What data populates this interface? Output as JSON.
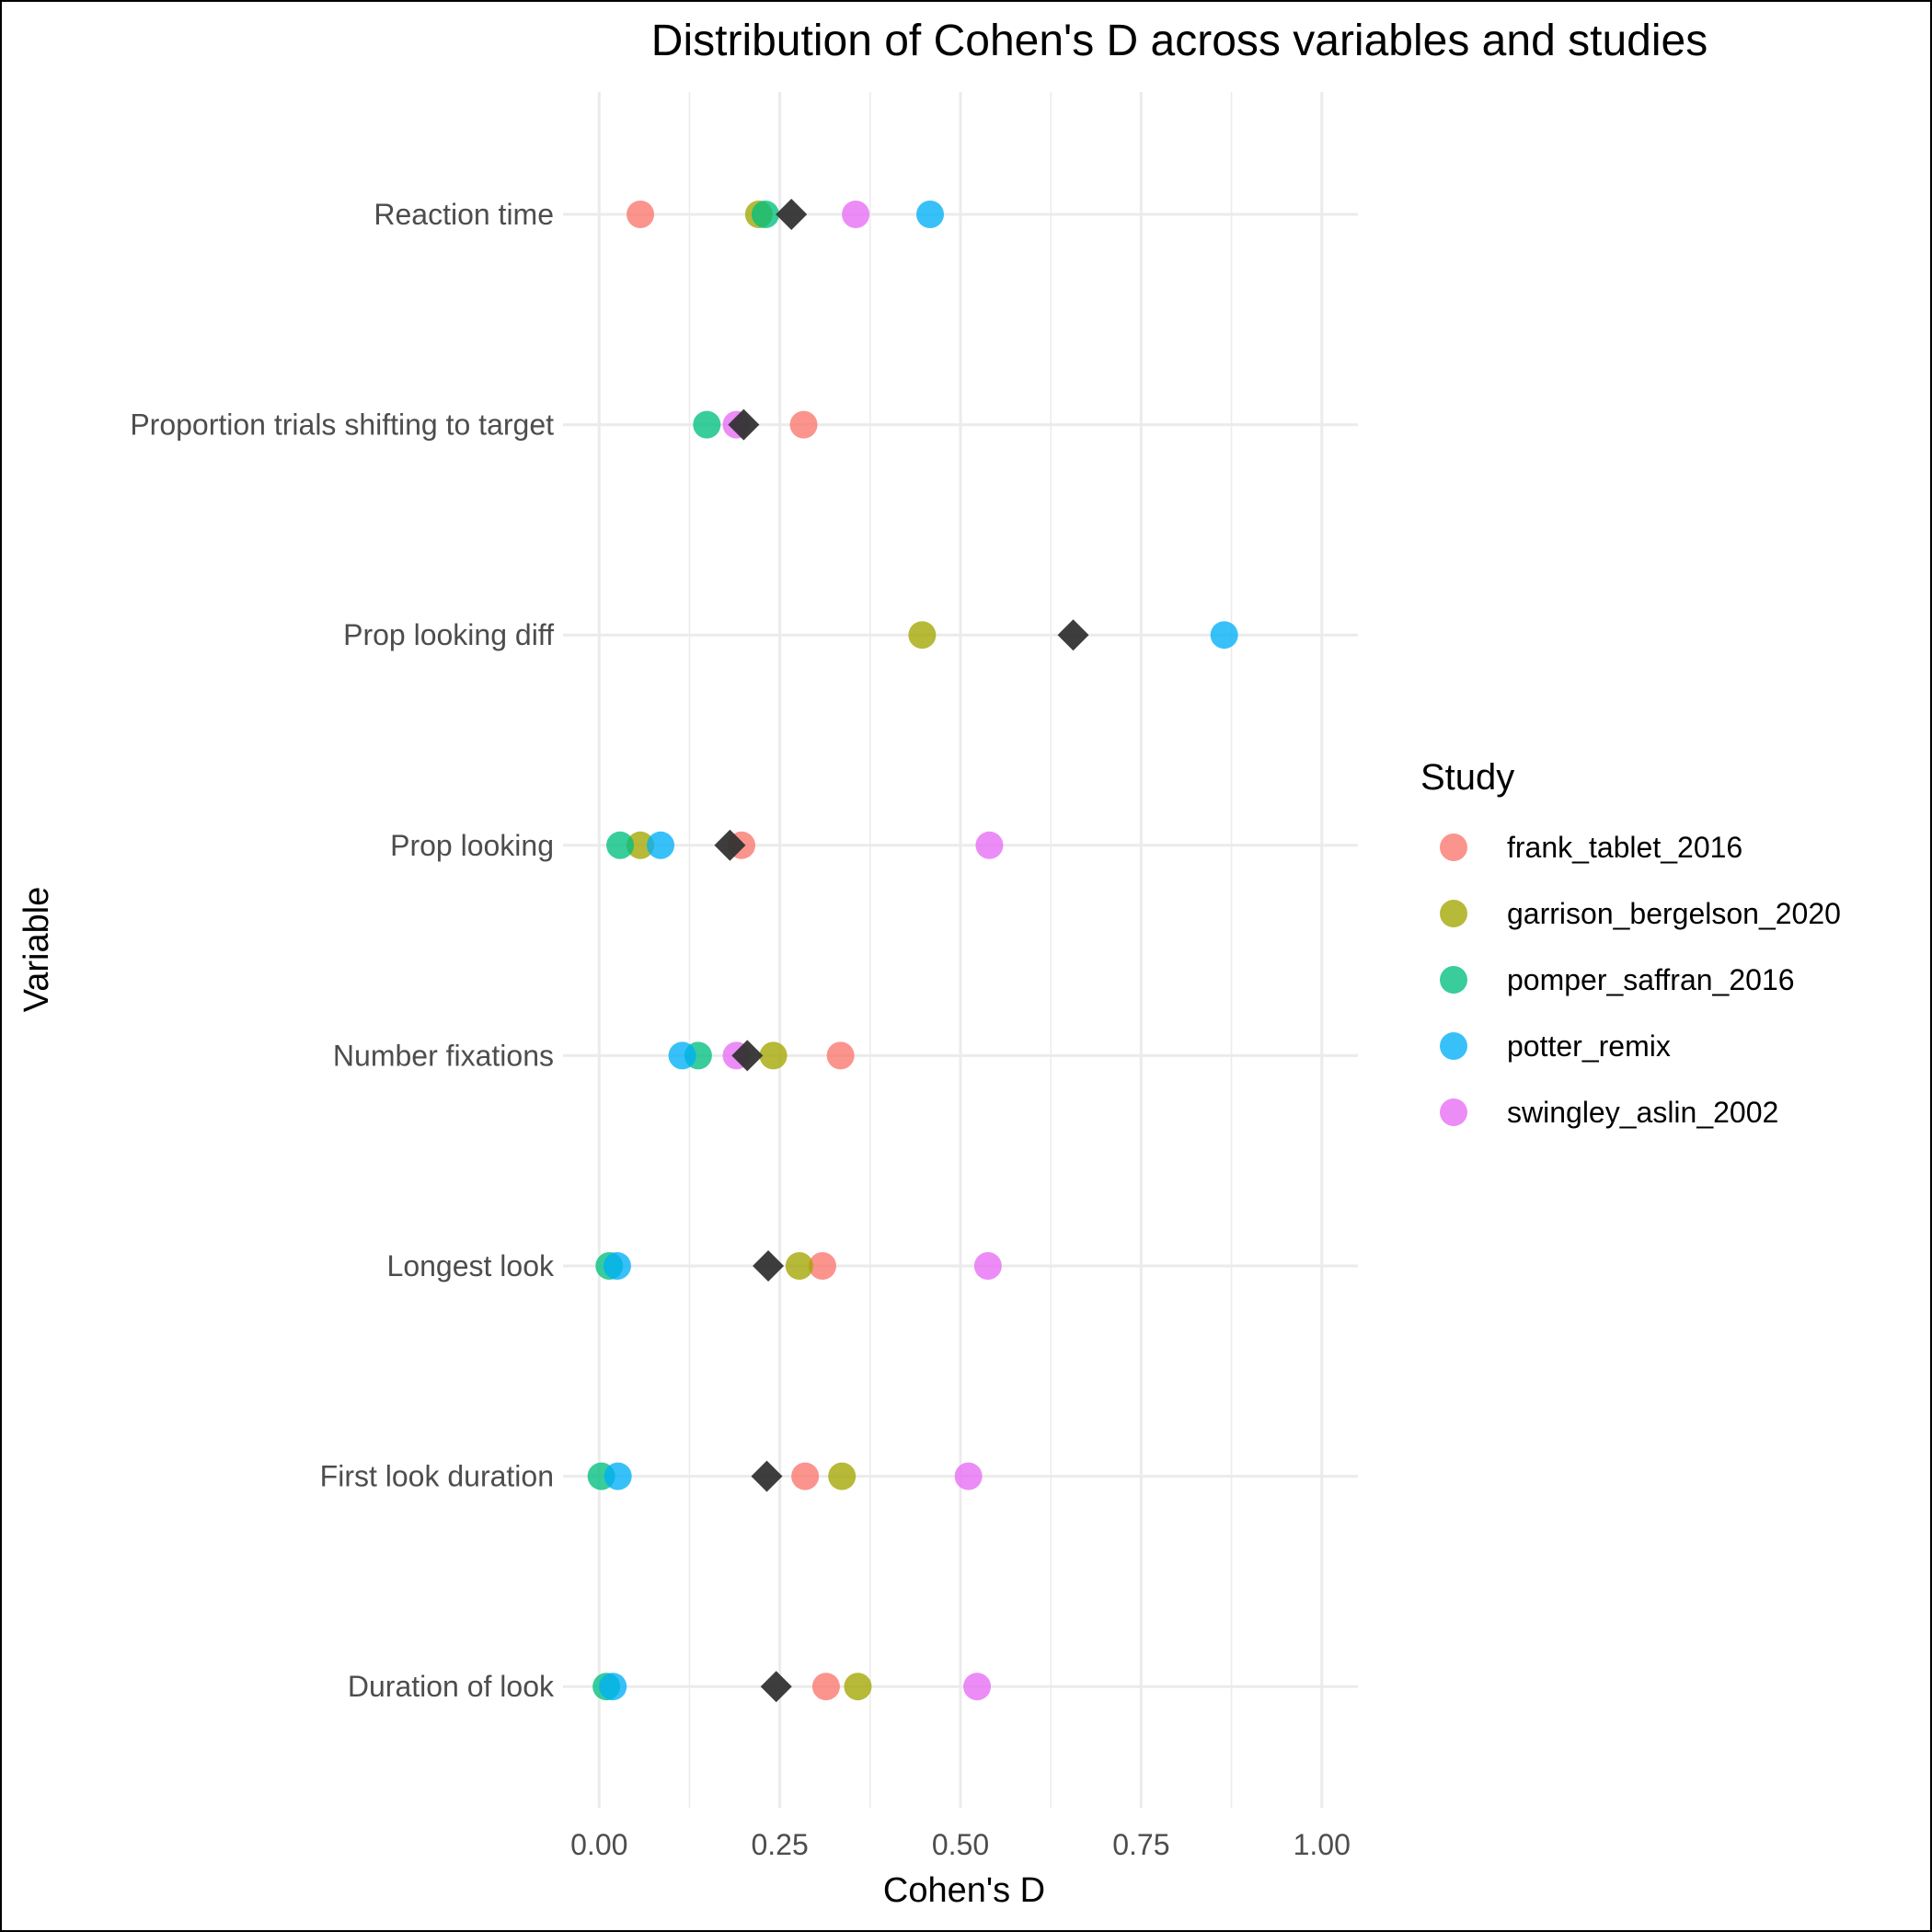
{
  "chart_data": {
    "type": "scatter",
    "title": "Distribution of Cohen's D across variables and studies",
    "xlabel": "Cohen's D",
    "ylabel": "Variable",
    "xlim": [
      -0.05,
      1.05
    ],
    "xticks": [
      0,
      0.25,
      0.5,
      0.75,
      1
    ],
    "xtick_labels": [
      "0.00",
      "0.25",
      "0.50",
      "0.75",
      "1.00"
    ],
    "grid": true,
    "legend_title": "Study",
    "legend_position": "right",
    "categories": [
      "Reaction time",
      "Proportion trials shifting to target",
      "Prop looking diff",
      "Prop looking",
      "Number fixations",
      "Longest look",
      "First look duration",
      "Duration of look"
    ],
    "series": [
      {
        "name": "frank_tablet_2016",
        "color": "#F8766D",
        "values": [
          0.057,
          0.283,
          null,
          0.197,
          0.334,
          0.309,
          0.285,
          0.314
        ]
      },
      {
        "name": "garrison_bergelson_2020",
        "color": "#A3A500",
        "values": [
          0.221,
          null,
          0.447,
          0.057,
          0.241,
          0.277,
          0.336,
          0.358
        ]
      },
      {
        "name": "pomper_saffran_2016",
        "color": "#00BF7D",
        "values": [
          0.23,
          0.149,
          null,
          0.029,
          0.137,
          0.014,
          0.003,
          0.01
        ]
      },
      {
        "name": "potter_remix",
        "color": "#00B0F6",
        "values": [
          0.458,
          null,
          0.865,
          0.085,
          0.115,
          0.025,
          0.026,
          0.019
        ]
      },
      {
        "name": "swingley_aslin_2002",
        "color": "#E76BF3",
        "values": [
          0.355,
          0.19,
          null,
          0.54,
          0.19,
          0.538,
          0.511,
          0.523
        ]
      }
    ],
    "summary": {
      "color": "#333333",
      "values": [
        0.266,
        0.2,
        0.656,
        0.181,
        0.205,
        0.234,
        0.232,
        0.245
      ]
    }
  }
}
